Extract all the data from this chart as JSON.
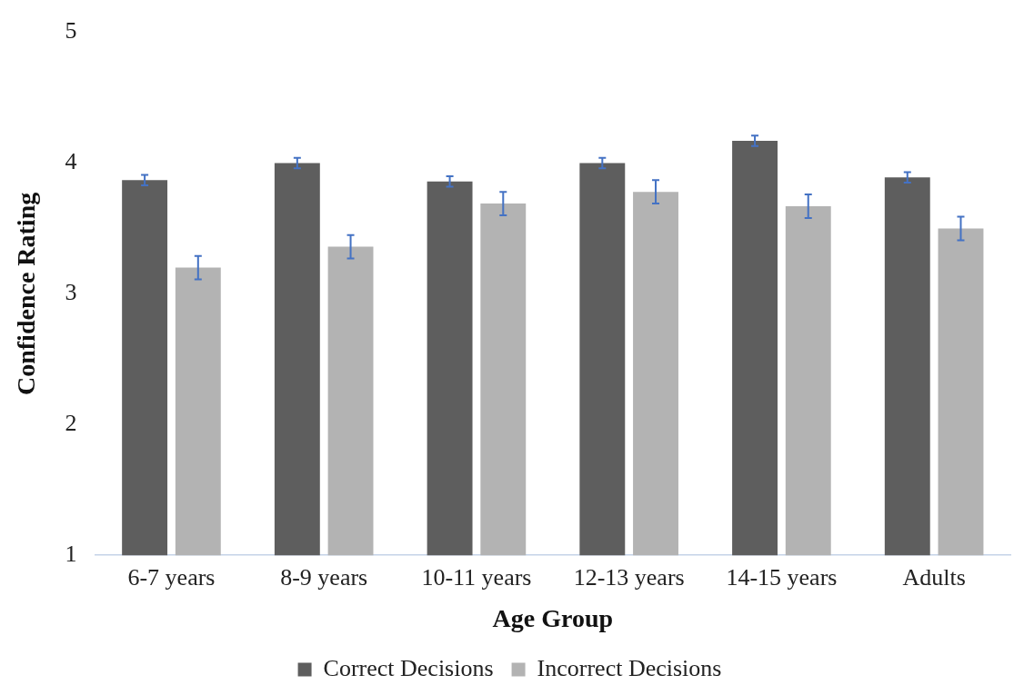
{
  "chart_data": {
    "type": "bar",
    "xlabel": "Age Group",
    "ylabel": "Confidence Rating",
    "categories": [
      "6-7 years",
      "8-9 years",
      "10-11 years",
      "12-13 years",
      "14-15 years",
      "Adults"
    ],
    "series": [
      {
        "name": "Correct Decisions",
        "color": "#5e5e5e",
        "values": [
          3.87,
          4.0,
          3.86,
          4.0,
          4.17,
          3.89
        ],
        "errors": [
          0.04,
          0.04,
          0.04,
          0.04,
          0.04,
          0.04
        ]
      },
      {
        "name": "Incorrect Decisions",
        "color": "#b3b3b3",
        "values": [
          3.2,
          3.36,
          3.69,
          3.78,
          3.67,
          3.5
        ],
        "errors": [
          0.09,
          0.09,
          0.09,
          0.09,
          0.09,
          0.09
        ]
      }
    ],
    "ylim": [
      1,
      5
    ],
    "yticks": [
      1,
      2,
      3,
      4,
      5
    ],
    "grid": false,
    "legend": "bottom"
  }
}
